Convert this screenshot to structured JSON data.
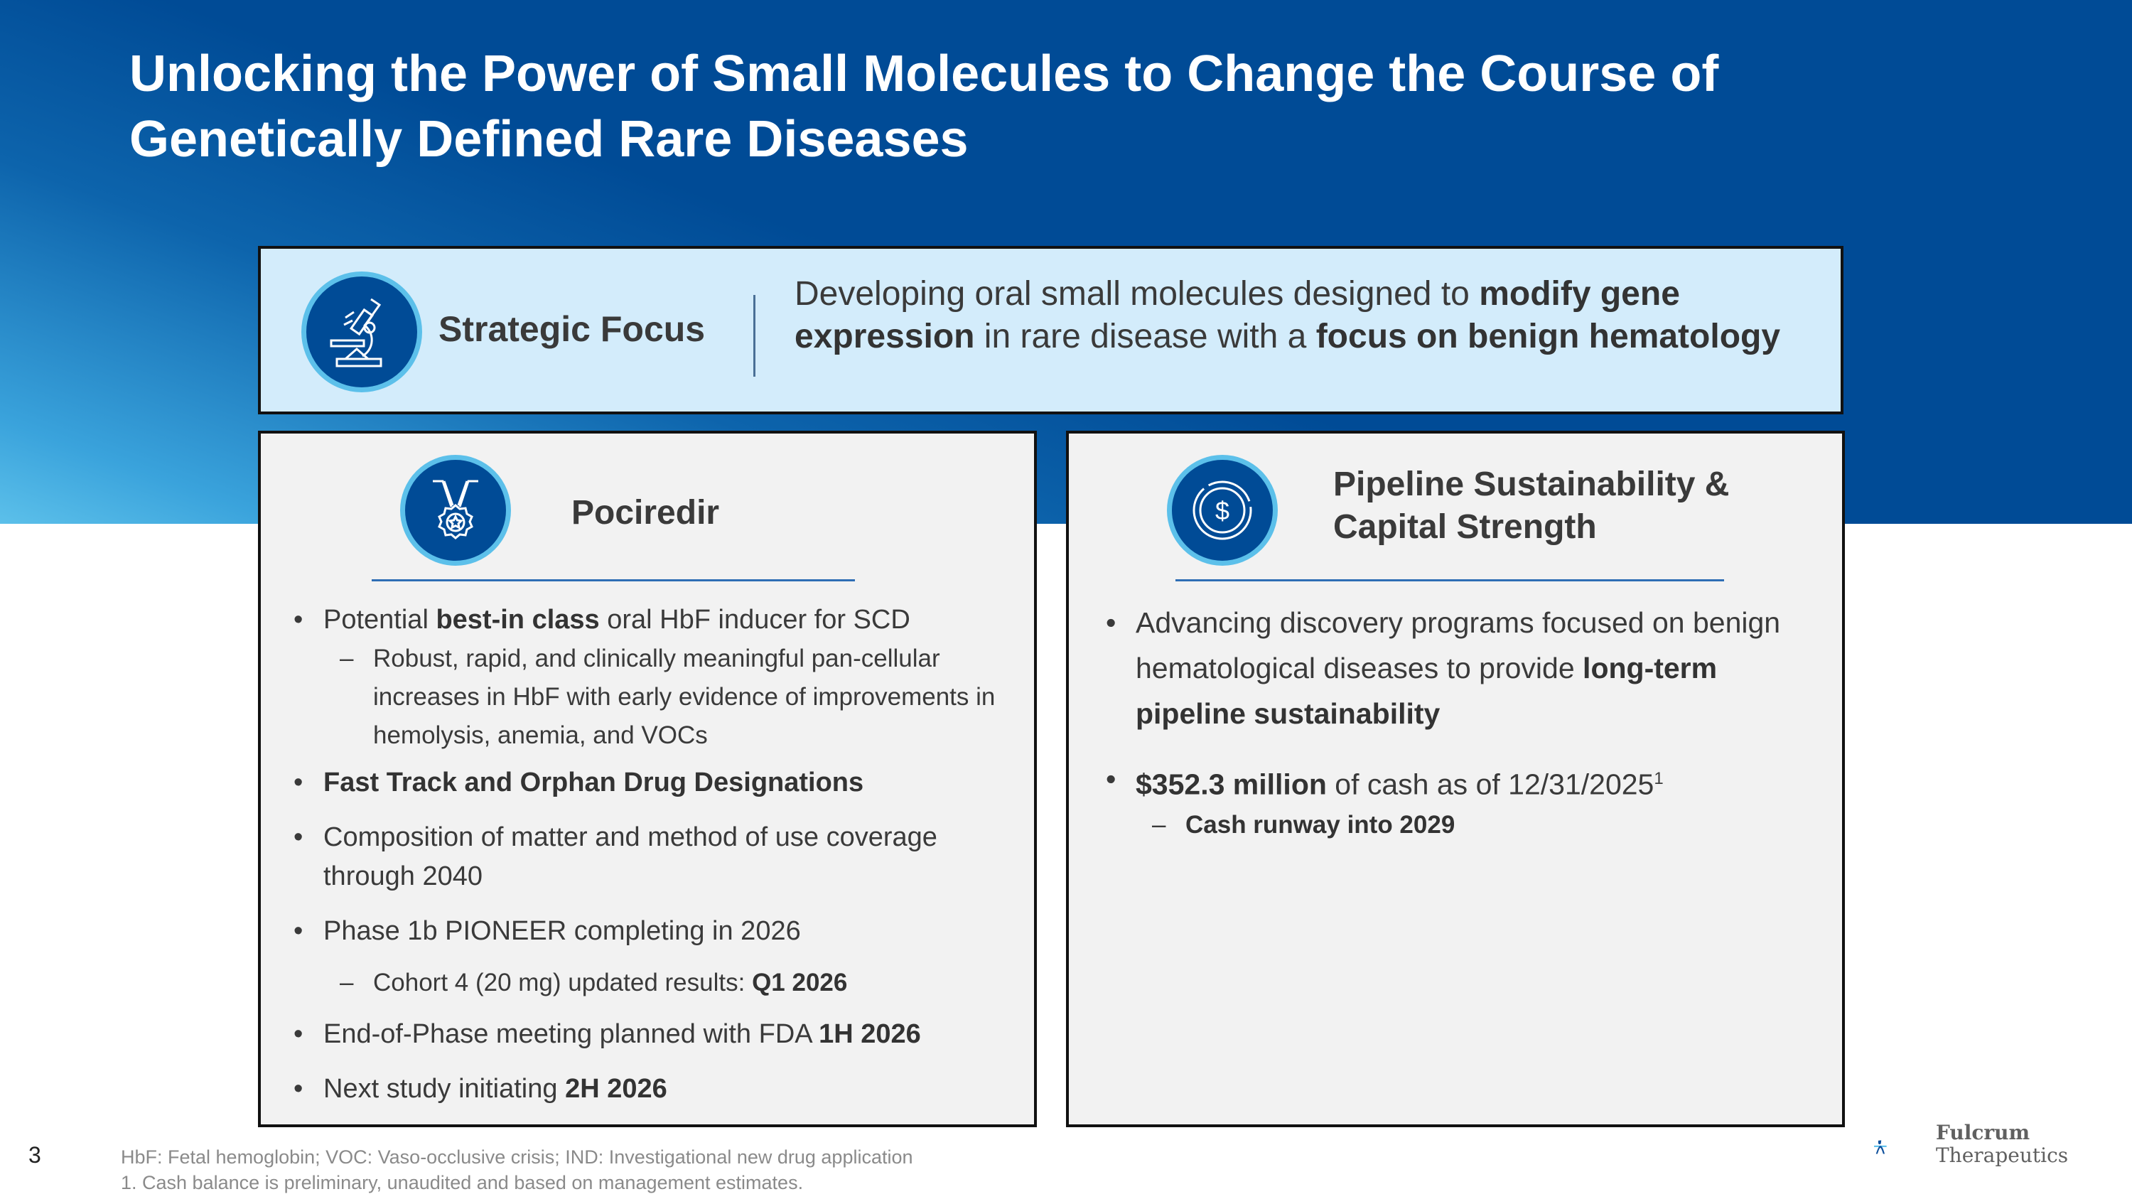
{
  "title": "Unlocking the Power of Small Molecules to Change the Course of Genetically Defined Rare Diseases",
  "strategic": {
    "label": "Strategic Focus",
    "text": [
      {
        "t": "Developing oral small molecules designed to ",
        "b": false
      },
      {
        "t": "modify gene expression",
        "b": true
      },
      {
        "t": " in rare disease with a ",
        "b": false
      },
      {
        "t": "focus on benign hematology",
        "b": true
      }
    ],
    "icon": "microscope-icon"
  },
  "pociredir": {
    "title": "Pociredir",
    "icon": "medal-icon",
    "bullets": [
      {
        "level": 1,
        "parts": [
          {
            "t": "Potential "
          },
          {
            "t": "best-in class",
            "b": true
          },
          {
            "t": " oral HbF inducer for SCD"
          }
        ]
      },
      {
        "level": 2,
        "parts": [
          {
            "t": "Robust, rapid, and clinically meaningful pan-cellular increases in HbF with early evidence of improvements in hemolysis, anemia, and VOCs"
          }
        ]
      },
      {
        "level": 1,
        "parts": [
          {
            "t": "Fast Track and Orphan Drug Designations",
            "b": true
          }
        ]
      },
      {
        "level": 1,
        "parts": [
          {
            "t": "Composition of matter and method of use coverage through 2040"
          }
        ]
      },
      {
        "level": 1,
        "parts": [
          {
            "t": "Phase 1b PIONEER completing in 2026"
          }
        ]
      },
      {
        "level": 2,
        "parts": [
          {
            "t": "Cohort 4 (20 mg) updated results: "
          },
          {
            "t": "Q1 2026",
            "b": true
          }
        ]
      },
      {
        "level": 1,
        "parts": [
          {
            "t": "End-of-Phase meeting planned with FDA "
          },
          {
            "t": "1H 2026",
            "b": true
          }
        ]
      },
      {
        "level": 1,
        "parts": [
          {
            "t": "Next study initiating "
          },
          {
            "t": "2H 2026",
            "b": true
          }
        ]
      }
    ]
  },
  "pipeline": {
    "title": "Pipeline Sustainability & Capital Strength",
    "icon": "dollar-coin-icon",
    "bullets": [
      {
        "level": 1,
        "parts": [
          {
            "t": "Advancing discovery programs focused on benign hematological diseases to provide "
          },
          {
            "t": "long-term pipeline sustainability",
            "b": true
          }
        ]
      },
      {
        "level": 1,
        "parts": [
          {
            "t": "$352.3 million",
            "b": true
          },
          {
            "t": " of cash as of 12/31/2025"
          },
          {
            "t": "1",
            "sup": true
          }
        ]
      },
      {
        "level": 2,
        "parts": [
          {
            "t": "Cash runway into 2029",
            "b": true
          }
        ]
      }
    ]
  },
  "page_number": "3",
  "footnotes": [
    "HbF: Fetal hemoglobin; VOC: Vaso-occlusive crisis; IND: Investigational new drug application",
    "1. Cash balance is preliminary, unaudited and based on management estimates."
  ],
  "logo": {
    "line1": "Fulcrum",
    "line2": "Therapeutics"
  }
}
